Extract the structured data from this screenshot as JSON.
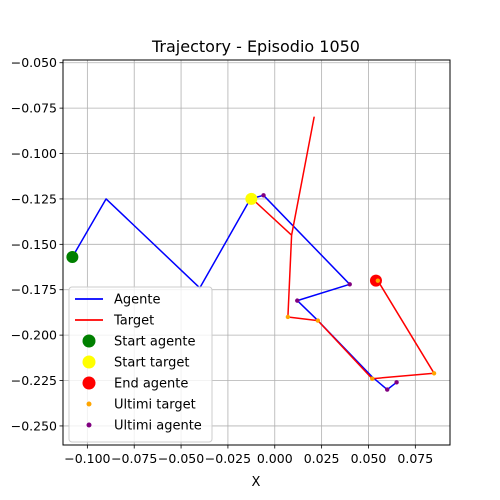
{
  "chart_data": {
    "type": "line",
    "title": "Trajectory - Episodio 1050",
    "xlabel": "X",
    "ylabel": "",
    "xlim": [
      -0.113,
      0.0935
    ],
    "ylim": [
      -0.2605,
      -0.0485
    ],
    "x_ticks": [
      -0.1,
      -0.075,
      -0.05,
      -0.025,
      0.0,
      0.025,
      0.05,
      0.075
    ],
    "x_tick_labels": [
      "−0.100",
      "−0.075",
      "−0.050",
      "−0.025",
      "0.000",
      "0.025",
      "0.050",
      "0.075"
    ],
    "y_ticks": [
      -0.05,
      -0.075,
      -0.1,
      -0.125,
      -0.15,
      -0.175,
      -0.2,
      -0.225,
      -0.25
    ],
    "y_tick_labels": [
      "−0.050",
      "−0.075",
      "−0.100",
      "−0.125",
      "−0.150",
      "−0.175",
      "−0.200",
      "−0.225",
      "−0.250"
    ],
    "grid": true,
    "legend_position": "bottom-left",
    "series": [
      {
        "name": "Agente",
        "kind": "line",
        "color": "#0000ff",
        "x": [
          -0.108,
          -0.09,
          -0.04,
          -0.013,
          -0.006
        ],
        "y": [
          -0.157,
          -0.125,
          -0.174,
          -0.125,
          -0.123
        ]
      },
      {
        "name": "Agente",
        "kind": "line",
        "color": "#0000ff",
        "x": [
          -0.006,
          0.04,
          0.012,
          0.023,
          0.052,
          0.06,
          0.065
        ],
        "y": [
          -0.123,
          -0.172,
          -0.181,
          -0.192,
          -0.223,
          -0.23,
          -0.226
        ],
        "legend": false
      },
      {
        "name": "Target",
        "kind": "line",
        "color": "#ff0000",
        "x": [
          -0.012,
          0.009,
          0.021,
          0.009,
          0.007,
          0.023,
          0.052,
          0.085,
          0.055
        ],
        "y": [
          -0.125,
          -0.145,
          -0.08,
          -0.145,
          -0.19,
          -0.192,
          -0.224,
          -0.221,
          -0.17
        ]
      },
      {
        "name": "Start agente",
        "kind": "marker",
        "color": "#008000",
        "x": [
          -0.108
        ],
        "y": [
          -0.157
        ]
      },
      {
        "name": "Start target",
        "kind": "marker",
        "color": "#ffff00",
        "x": [
          -0.0125
        ],
        "y": [
          -0.125
        ]
      },
      {
        "name": "End agente",
        "kind": "marker",
        "color": "#ff0000",
        "x": [
          0.054
        ],
        "y": [
          -0.17
        ]
      },
      {
        "name": "Ultimi target",
        "kind": "points",
        "color": "#ffa500",
        "x": [
          0.007,
          0.023,
          0.052,
          0.085,
          0.055
        ],
        "y": [
          -0.19,
          -0.192,
          -0.224,
          -0.221,
          -0.17
        ]
      },
      {
        "name": "Ultimi agente",
        "kind": "points",
        "color": "#800080",
        "x": [
          -0.006,
          0.04,
          0.012,
          0.06,
          0.065
        ],
        "y": [
          -0.123,
          -0.172,
          -0.181,
          -0.23,
          -0.226
        ]
      }
    ],
    "legend": [
      {
        "label": "Agente",
        "kind": "line",
        "color": "#0000ff"
      },
      {
        "label": "Target",
        "kind": "line",
        "color": "#ff0000"
      },
      {
        "label": "Start agente",
        "kind": "marker",
        "color": "#008000"
      },
      {
        "label": "Start target",
        "kind": "marker",
        "color": "#ffff00"
      },
      {
        "label": "End agente",
        "kind": "marker",
        "color": "#ff0000"
      },
      {
        "label": "Ultimi target",
        "kind": "points",
        "color": "#ffa500"
      },
      {
        "label": "Ultimi agente",
        "kind": "points",
        "color": "#800080"
      }
    ]
  }
}
